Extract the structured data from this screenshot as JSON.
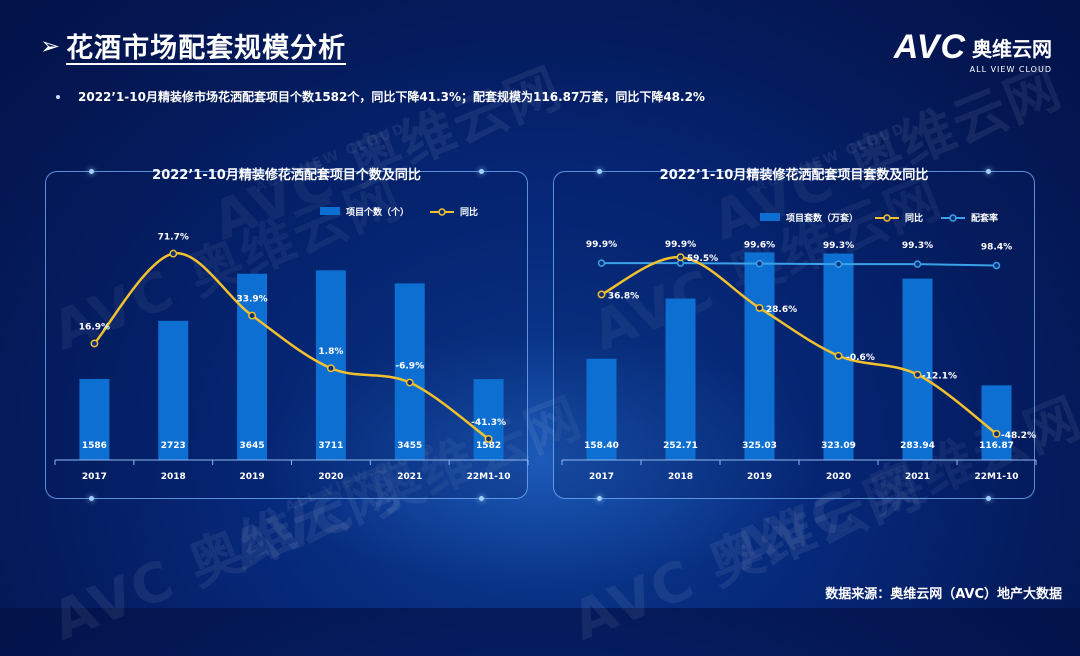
{
  "page": {
    "title_arrow": "➢",
    "title": "花酒市场配套规模分析",
    "logo_text": "AVC",
    "logo_cn": "奥维云网",
    "logo_sub": "ALL VIEW CLOUD",
    "bullet": "2022’1-10月精装修市场花洒配套项目个数1582个，同比下降41.3%；配套规模为116.87万套，同比下降48.2%",
    "source": "数据来源：奥维云网（AVC）地产大数据",
    "watermark": "AVC 奥维云网",
    "watermark_sub": "ALL VIEW CLOUD"
  },
  "colors": {
    "bar": "#0d6fd1",
    "line_yoy": "#f2c12e",
    "line_rate": "#3aa2e8",
    "panel_border": "#78b4ff"
  },
  "chart_data": [
    {
      "type": "bar",
      "title": "2022’1-10月精装修花洒配套项目个数及同比",
      "categories": [
        "2017",
        "2018",
        "2019",
        "2020",
        "2021",
        "22M1-10"
      ],
      "series": [
        {
          "name": "项目个数（个）",
          "kind": "bar",
          "values": [
            1586,
            2723,
            3645,
            3711,
            3455,
            1582
          ],
          "labels": [
            "1586",
            "2723",
            "3645",
            "3711",
            "3455",
            "1582"
          ]
        },
        {
          "name": "同比",
          "kind": "line",
          "values": [
            16.9,
            71.7,
            33.9,
            1.8,
            -6.9,
            -41.3
          ],
          "labels": [
            "16.9%",
            "71.7%",
            "33.9%",
            "1.8%",
            "-6.9%",
            "-41.3%"
          ]
        }
      ],
      "bar_ylim": [
        0,
        4500
      ],
      "line_ylim": [
        -45,
        80
      ],
      "legend": "top-right"
    },
    {
      "type": "bar",
      "title": "2022’1-10月精装修花洒配套项目套数及同比",
      "categories": [
        "2017",
        "2018",
        "2019",
        "2020",
        "2021",
        "22M1-10"
      ],
      "series": [
        {
          "name": "项目套数（万套）",
          "kind": "bar",
          "values": [
            158.4,
            252.71,
            325.03,
            323.09,
            283.94,
            116.87
          ],
          "labels": [
            "158.40",
            "252.71",
            "325.03",
            "323.09",
            "283.94",
            "116.87"
          ]
        },
        {
          "name": "同比",
          "kind": "line",
          "values": [
            36.8,
            59.5,
            28.6,
            -0.6,
            -12.1,
            -48.2
          ],
          "labels": [
            "36.8%",
            "59.5%",
            "28.6%",
            "-0.6%",
            "-12.1%",
            "-48.2%"
          ]
        },
        {
          "name": "配套率",
          "kind": "line",
          "values": [
            99.9,
            99.9,
            99.6,
            99.3,
            99.3,
            98.4
          ],
          "labels": [
            "99.9%",
            "99.9%",
            "99.6%",
            "99.3%",
            "99.3%",
            "98.4%"
          ]
        }
      ],
      "bar_ylim": [
        0,
        360
      ],
      "line_ylim": [
        -55,
        70
      ],
      "rate_ylim": [
        0,
        100
      ],
      "legend": "top-right"
    }
  ]
}
